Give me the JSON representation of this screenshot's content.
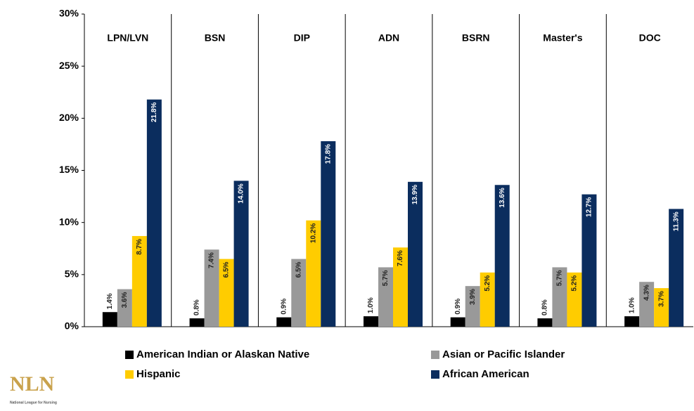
{
  "chart_data": {
    "type": "bar",
    "categories": [
      "LPN/LVN",
      "BSN",
      "DIP",
      "ADN",
      "BSRN",
      "Master's",
      "DOC"
    ],
    "series": [
      {
        "name": "American Indian or Alaskan Native",
        "color": "#000000",
        "values": [
          1.4,
          0.8,
          0.9,
          1.0,
          0.9,
          0.8,
          1.0
        ],
        "value_labels": [
          "1.4%",
          "0.8%",
          "0.9%",
          "1.0%",
          "0.9%",
          "0.8%",
          "1.0%"
        ]
      },
      {
        "name": "Asian or Pacific Islander",
        "color": "#999999",
        "values": [
          3.6,
          7.4,
          6.5,
          5.7,
          3.9,
          5.7,
          4.3
        ],
        "value_labels": [
          "3.6%",
          "7.4%",
          "6.5%",
          "5.7%",
          "3.9%",
          "5.7%",
          "4.3%"
        ]
      },
      {
        "name": "Hispanic",
        "color": "#ffcc00",
        "values": [
          8.7,
          6.5,
          10.2,
          7.6,
          5.2,
          5.2,
          3.7
        ],
        "value_labels": [
          "8.7%",
          "6.5%",
          "10.2%",
          "7.6%",
          "5.2%",
          "5.2%",
          "3.7%"
        ]
      },
      {
        "name": "African American",
        "color": "#0b2d5e",
        "values": [
          21.8,
          14.0,
          17.8,
          13.9,
          13.6,
          12.7,
          11.3
        ],
        "value_labels": [
          "21.8%",
          "14.0%",
          "17.8%",
          "13.9%",
          "13.6%",
          "12.7%",
          "11.3%"
        ]
      }
    ],
    "ylim": [
      0,
      30
    ],
    "yticks": [
      {
        "value": 0,
        "label": "0%"
      },
      {
        "value": 5,
        "label": "5%"
      },
      {
        "value": 10,
        "label": "10%"
      },
      {
        "value": 15,
        "label": "15%"
      },
      {
        "value": 20,
        "label": "20%"
      },
      {
        "value": 25,
        "label": "25%"
      },
      {
        "value": 30,
        "label": "30%"
      }
    ]
  },
  "logo": {
    "name": "NLN",
    "tagline": "National League for Nursing"
  }
}
